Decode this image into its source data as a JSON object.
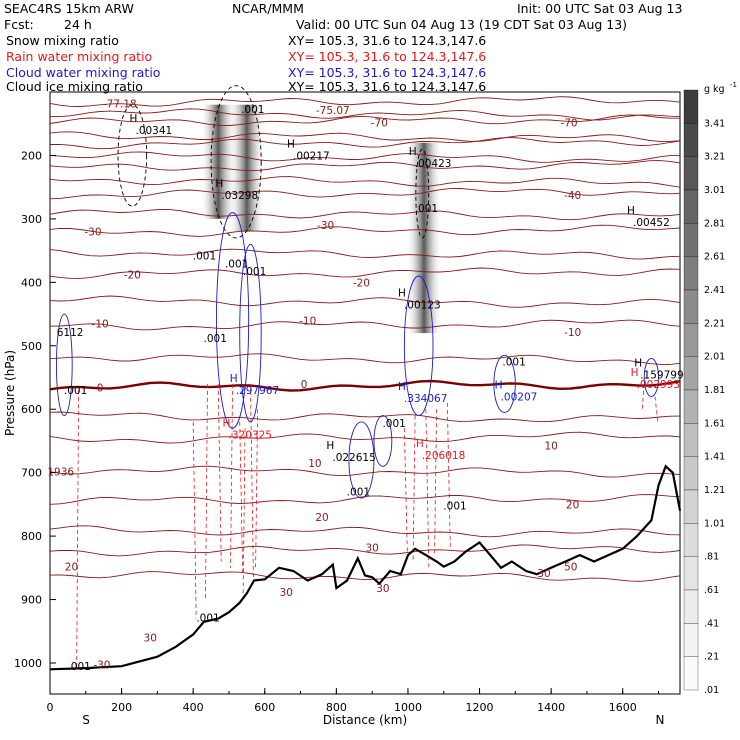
{
  "header": {
    "model": "SEAC4RS 15km ARW",
    "org": "NCAR/MMM",
    "init": "Init: 00 UTC Sat 03 Aug 13",
    "fcst_label": "Fcst:",
    "fcst_value": "24 h",
    "valid": "Valid: 00 UTC Sun 04 Aug 13 (19 CDT Sat 03 Aug 13)",
    "fields": [
      {
        "name": "Snow mixing ratio",
        "color": "#000000",
        "xy": "XY= 105.3, 31.6 to 124.3,147.6"
      },
      {
        "name": "Rain water mixing ratio",
        "color": "#e8181c",
        "xy": "XY= 105.3, 31.6 to 124.3,147.6"
      },
      {
        "name": "Cloud water mixing ratio",
        "color": "#1a1ad0",
        "xy": "XY= 105.3, 31.6 to 124.3,147.6"
      },
      {
        "name": "Cloud ice mixing ratio",
        "color": "#000000",
        "xy": "XY= 105.3, 31.6 to 124.3,147.6"
      }
    ]
  },
  "chart_data": {
    "type": "contour",
    "xlabel": "Distance (km)",
    "ylabel": "Pressure (hPa)",
    "xlim": [
      0,
      1760
    ],
    "ylim": [
      100,
      1050
    ],
    "y_scale": "reversed",
    "grid": false,
    "x_ticks": [
      "0",
      "200",
      "400",
      "600",
      "800",
      "1000",
      "1200",
      "1400",
      "1600"
    ],
    "y_ticks": [
      "200",
      "300",
      "400",
      "500",
      "600",
      "700",
      "800",
      "900",
      "1000"
    ],
    "x_end_labels": {
      "left": "S",
      "right": "N"
    },
    "colorbar": {
      "unit": "g kg",
      "unit_exponent": "-1",
      "labels": [
        "3.41",
        "3.21",
        "3.01",
        "2.81",
        "2.61",
        "2.41",
        "2.21",
        "2.01",
        "1.81",
        "1.61",
        "1.41",
        "1.21",
        "1.01",
        ".81",
        ".61",
        ".41",
        ".21",
        ".01"
      ],
      "cmap_colors": [
        "#3c3c3c",
        "#4a4a4a",
        "#575757",
        "#646464",
        "#717171",
        "#7e7e7e",
        "#8b8b8b",
        "#989898",
        "#a5a5a5",
        "#b2b2b2",
        "#bebebe",
        "#c8c8c8",
        "#d2d2d2",
        "#dcdcdc",
        "#e4e4e4",
        "#ececec",
        "#f3f3f3",
        "#fafafa"
      ]
    },
    "temperature_contours": {
      "color": "#8b1a1a",
      "zero_color": "#7a0000",
      "levels_hpa": [
        118,
        132,
        148,
        168,
        183,
        200,
        220,
        238,
        262,
        290,
        322,
        352,
        388,
        428,
        470,
        517,
        566,
        610,
        648,
        695,
        745,
        790,
        825,
        860
      ],
      "labels": [
        "-77.18",
        "-75.07",
        "-70",
        "-70",
        "-40",
        "-30",
        "-20",
        "-10",
        "0",
        "10",
        "20",
        "20",
        "30",
        "30",
        "-30",
        "-1936",
        "20",
        "30",
        "30",
        "20"
      ],
      "label_positions": [
        {
          "text": "-77.18",
          "x": 195,
          "p": 118
        },
        {
          "text": "-75.07",
          "x": 790,
          "p": 128
        },
        {
          "text": "-70",
          "x": 920,
          "p": 148
        },
        {
          "text": "-70",
          "x": 1450,
          "p": 148
        },
        {
          "text": "-40",
          "x": 1460,
          "p": 262
        },
        {
          "text": "-30",
          "x": 120,
          "p": 320
        },
        {
          "text": "-30",
          "x": 770,
          "p": 310
        },
        {
          "text": "-20",
          "x": 230,
          "p": 388
        },
        {
          "text": "-20",
          "x": 870,
          "p": 400
        },
        {
          "text": "-10",
          "x": 140,
          "p": 465
        },
        {
          "text": "-10",
          "x": 720,
          "p": 460
        },
        {
          "text": "-10",
          "x": 1460,
          "p": 478
        },
        {
          "text": "0",
          "x": 140,
          "p": 566
        },
        {
          "text": "0",
          "x": 710,
          "p": 560
        },
        {
          "text": "10",
          "x": 740,
          "p": 685
        },
        {
          "text": "10",
          "x": 1400,
          "p": 657
        },
        {
          "text": "20",
          "x": 760,
          "p": 770
        },
        {
          "text": "20",
          "x": 1460,
          "p": 750
        },
        {
          "text": "20",
          "x": 60,
          "p": 848
        },
        {
          "text": "30",
          "x": 900,
          "p": 818
        },
        {
          "text": "30",
          "x": 660,
          "p": 888
        },
        {
          "text": "30",
          "x": 930,
          "p": 882
        },
        {
          "text": "30",
          "x": 280,
          "p": 960
        },
        {
          "text": "-30",
          "x": 145,
          "p": 1002
        },
        {
          "text": "30",
          "x": 1380,
          "p": 858
        },
        {
          "text": "50",
          "x": 1455,
          "p": 848
        },
        {
          "text": "1936",
          "x": 30,
          "p": 698
        }
      ]
    },
    "terrain": {
      "x_km": [
        0,
        100,
        200,
        300,
        350,
        400,
        430,
        470,
        500,
        530,
        550,
        570,
        600,
        640,
        680,
        720,
        760,
        790,
        800,
        830,
        860,
        880,
        900,
        920,
        950,
        980,
        1000,
        1020,
        1050,
        1080,
        1100,
        1130,
        1160,
        1200,
        1230,
        1260,
        1290,
        1330,
        1360,
        1400,
        1440,
        1480,
        1520,
        1560,
        1600,
        1640,
        1680,
        1700,
        1720,
        1740,
        1760
      ],
      "p_hpa": [
        1010,
        1008,
        1005,
        990,
        975,
        955,
        935,
        930,
        920,
        905,
        890,
        870,
        868,
        850,
        855,
        870,
        860,
        845,
        882,
        870,
        835,
        862,
        865,
        875,
        855,
        860,
        830,
        820,
        830,
        840,
        848,
        840,
        825,
        810,
        830,
        850,
        840,
        855,
        860,
        850,
        840,
        830,
        840,
        830,
        820,
        800,
        775,
        720,
        690,
        700,
        760
      ]
    },
    "features": [
      {
        "label": "H",
        "value": ".00341",
        "x": 250,
        "p": 160
      },
      {
        "label": "H",
        "value": ".00217",
        "x": 690,
        "p": 200
      },
      {
        "label": "H",
        "value": ".00423",
        "x": 1030,
        "p": 212
      },
      {
        "label": "H",
        "value": ".00452",
        "x": 1640,
        "p": 305
      },
      {
        "label": "H",
        "value": ".03298",
        "x": 490,
        "p": 262
      },
      {
        "label": "H",
        "value": ".00123",
        "x": 1000,
        "p": 435
      },
      {
        "label": "H",
        "value": ".297967",
        "x": 530,
        "p": 570
      },
      {
        "label": "H",
        "value": ".334067",
        "x": 1000,
        "p": 582
      },
      {
        "label": "H",
        "value": ".00207",
        "x": 1270,
        "p": 580
      },
      {
        "label": "H",
        "value": ".159799",
        "x": 1660,
        "p": 545
      },
      {
        "label": "H",
        "value": ".002993",
        "x": 1650,
        "p": 560
      },
      {
        "label": "H",
        "value": ".320325",
        "x": 510,
        "p": 640
      },
      {
        "label": "H",
        "value": ".022615",
        "x": 800,
        "p": 675
      },
      {
        "label": "H",
        "value": ".206018",
        "x": 1050,
        "p": 672
      },
      {
        "label": "",
        "value": ".001",
        "x": 545,
        "p": 127
      },
      {
        "label": "",
        "value": ".001",
        "x": 1030,
        "p": 283
      },
      {
        "label": "",
        "value": ".001",
        "x": 410,
        "p": 358
      },
      {
        "label": "",
        "value": ".001",
        "x": 500,
        "p": 370
      },
      {
        "label": "",
        "value": ".001",
        "x": 550,
        "p": 382
      },
      {
        "label": "",
        "value": ".001",
        "x": 440,
        "p": 488
      },
      {
        "label": "",
        "value": ".001",
        "x": 1275,
        "p": 525
      },
      {
        "label": "",
        "value": ".001",
        "x": 50,
        "p": 570
      },
      {
        "label": "",
        "value": ".001",
        "x": 940,
        "p": 622
      },
      {
        "label": "",
        "value": ".001",
        "x": 840,
        "p": 730
      },
      {
        "label": "",
        "value": ".001",
        "x": 1110,
        "p": 752
      },
      {
        "label": "",
        "value": ".001",
        "x": 420,
        "p": 928
      },
      {
        "label": "",
        "value": ".001",
        "x": 60,
        "p": 1005
      },
      {
        "label": "",
        "value": "6112",
        "x": 30,
        "p": 478
      }
    ],
    "towers": [
      {
        "name": "tower-left",
        "x_km": 470,
        "p_top": 120,
        "p_bottom": 300
      },
      {
        "name": "tower-mid",
        "x_km": 550,
        "p_top": 120,
        "p_bottom": 320
      },
      {
        "name": "tower-right",
        "x_km": 1045,
        "p_top": 180,
        "p_bottom": 480
      }
    ]
  }
}
